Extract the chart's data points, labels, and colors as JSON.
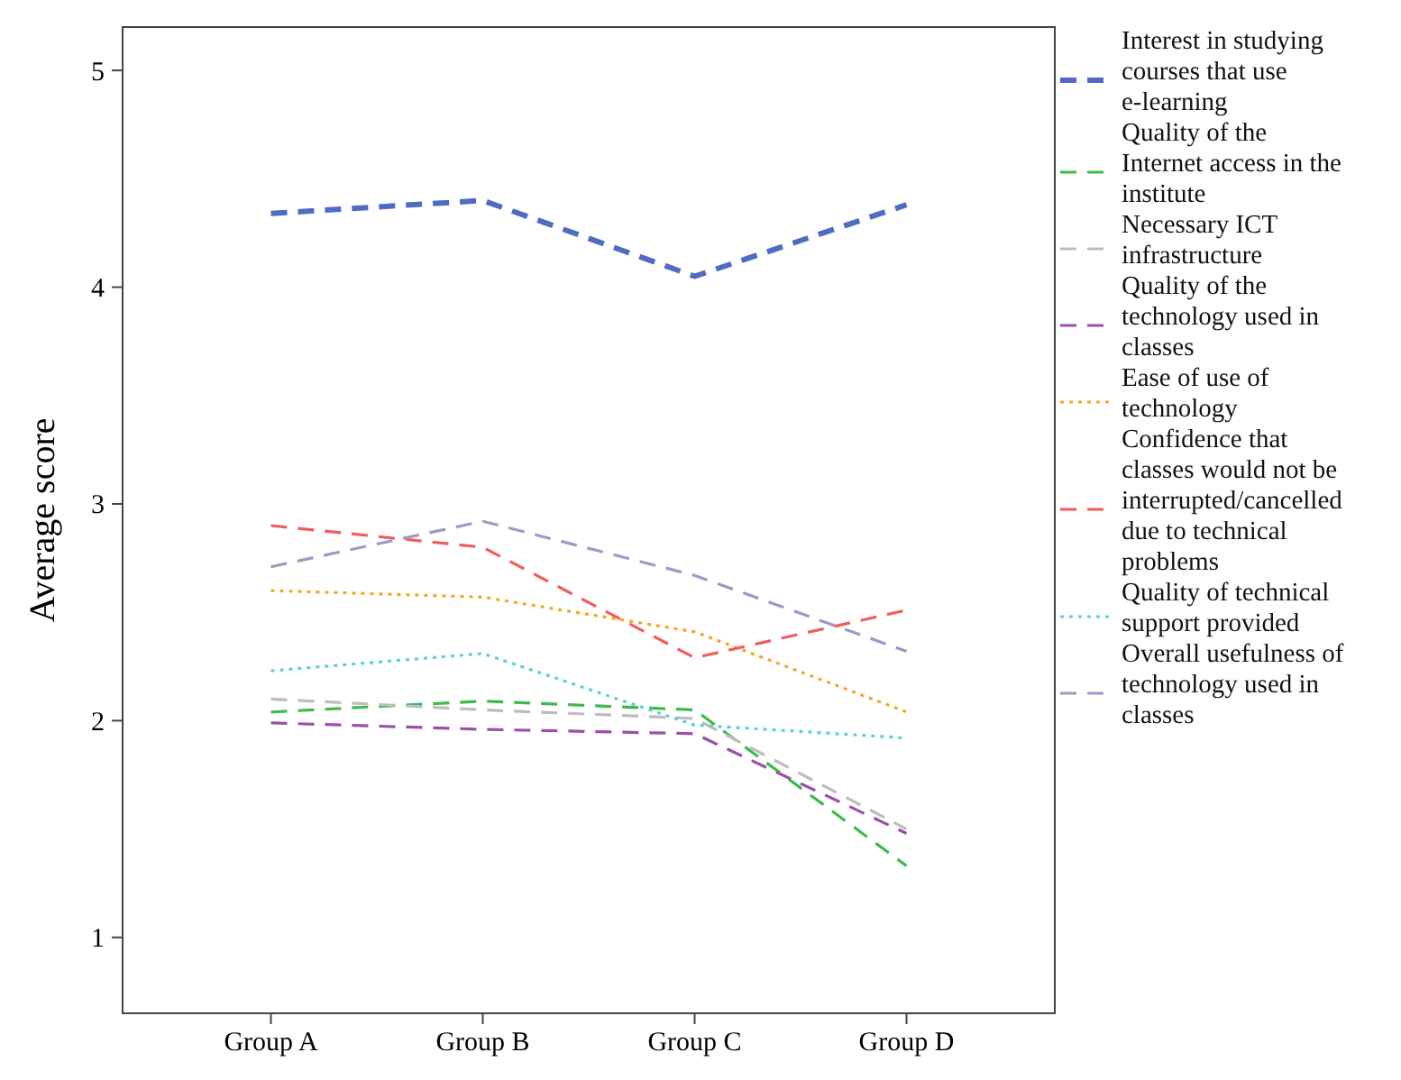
{
  "chart_data": {
    "type": "line",
    "ylabel": "Average score",
    "categories": [
      "Group A",
      "Group B",
      "Group C",
      "Group D"
    ],
    "ylim": [
      0.65,
      5.2
    ],
    "yticks": [
      1,
      2,
      3,
      4,
      5
    ],
    "grid": false,
    "legend": "right",
    "series": [
      {
        "name": "Interest in studying courses that use e-learning",
        "color": "#4f6bc4",
        "line_style": "dashed",
        "values": [
          4.34,
          4.4,
          4.05,
          4.38
        ]
      },
      {
        "name": "Quality of the Internet access in the institute",
        "color": "#3dbb4a",
        "line_style": "dashed",
        "values": [
          2.04,
          2.09,
          2.05,
          1.33
        ]
      },
      {
        "name": "Necessary ICT infrastructure",
        "color": "#bdbdbd",
        "line_style": "dashed",
        "values": [
          2.1,
          2.05,
          2.01,
          1.5
        ]
      },
      {
        "name": "Quality of the technology used in classes",
        "color": "#9b4fa8",
        "line_style": "dashed",
        "values": [
          1.99,
          1.96,
          1.94,
          1.48
        ]
      },
      {
        "name": "Ease of use of technology",
        "color": "#f5a623",
        "line_style": "dotted",
        "values": [
          2.6,
          2.57,
          2.41,
          2.04
        ]
      },
      {
        "name": "Confidence that classes would not be interrupted/cancelled due to technical problems",
        "color": "#f25c5c",
        "line_style": "dashed",
        "values": [
          2.9,
          2.8,
          2.29,
          2.51
        ]
      },
      {
        "name": "Quality of technical support provided",
        "color": "#5ccfd6",
        "line_style": "dotted",
        "values": [
          2.23,
          2.31,
          1.98,
          1.92
        ]
      },
      {
        "name": "Overall usefulness of technology used in classes",
        "color": "#9a9ac8",
        "line_style": "dashed",
        "values": [
          2.71,
          2.92,
          2.67,
          2.32
        ]
      }
    ]
  }
}
